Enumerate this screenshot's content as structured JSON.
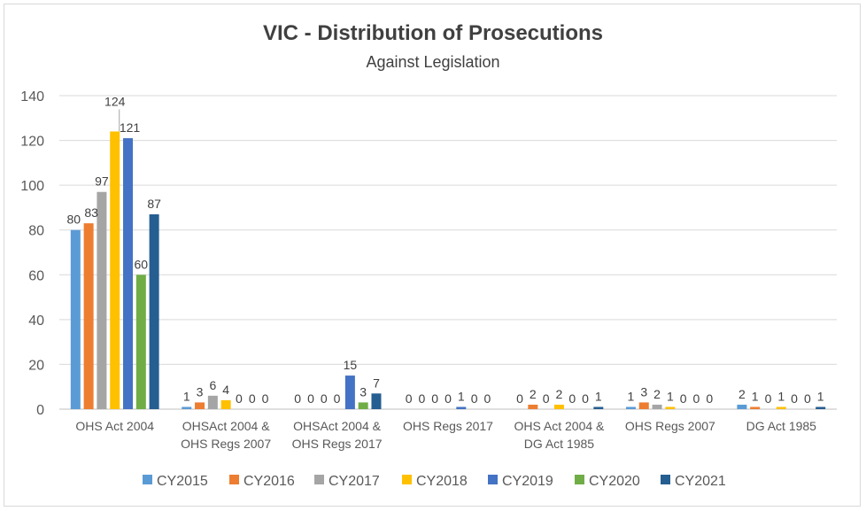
{
  "chart_data": {
    "type": "bar",
    "title": "VIC - Distribution of Prosecutions",
    "subtitle": "Against Legislation",
    "xlabel": "",
    "ylabel": "",
    "ylim": [
      0,
      140
    ],
    "yticks": [
      0,
      20,
      40,
      60,
      80,
      100,
      120,
      140
    ],
    "grid": true,
    "legend_position": "bottom",
    "categories": [
      [
        "OHS Act 2004"
      ],
      [
        "OHSAct 2004 &",
        "OHS Regs 2007"
      ],
      [
        "OHSAct 2004 &",
        "OHS Regs 2017"
      ],
      [
        "OHS Regs 2017"
      ],
      [
        "OHS Act 2004 &",
        "DG Act 1985"
      ],
      [
        "OHS Regs 2007"
      ],
      [
        "DG Act 1985"
      ]
    ],
    "series": [
      {
        "name": "CY2015",
        "color": "#5b9bd5",
        "values": [
          80,
          1,
          0,
          0,
          0,
          1,
          2
        ]
      },
      {
        "name": "CY2016",
        "color": "#ed7d31",
        "values": [
          83,
          3,
          0,
          0,
          2,
          3,
          1
        ]
      },
      {
        "name": "CY2017",
        "color": "#a5a5a5",
        "values": [
          97,
          6,
          0,
          0,
          0,
          2,
          0
        ]
      },
      {
        "name": "CY2018",
        "color": "#ffc000",
        "values": [
          124,
          4,
          0,
          0,
          2,
          1,
          1
        ]
      },
      {
        "name": "CY2019",
        "color": "#4472c4",
        "values": [
          121,
          0,
          15,
          1,
          0,
          0,
          0
        ]
      },
      {
        "name": "CY2020",
        "color": "#70ad47",
        "values": [
          60,
          0,
          3,
          0,
          0,
          0,
          0
        ]
      },
      {
        "name": "CY2021",
        "color": "#255e91",
        "values": [
          87,
          0,
          7,
          0,
          1,
          0,
          1
        ]
      }
    ]
  }
}
